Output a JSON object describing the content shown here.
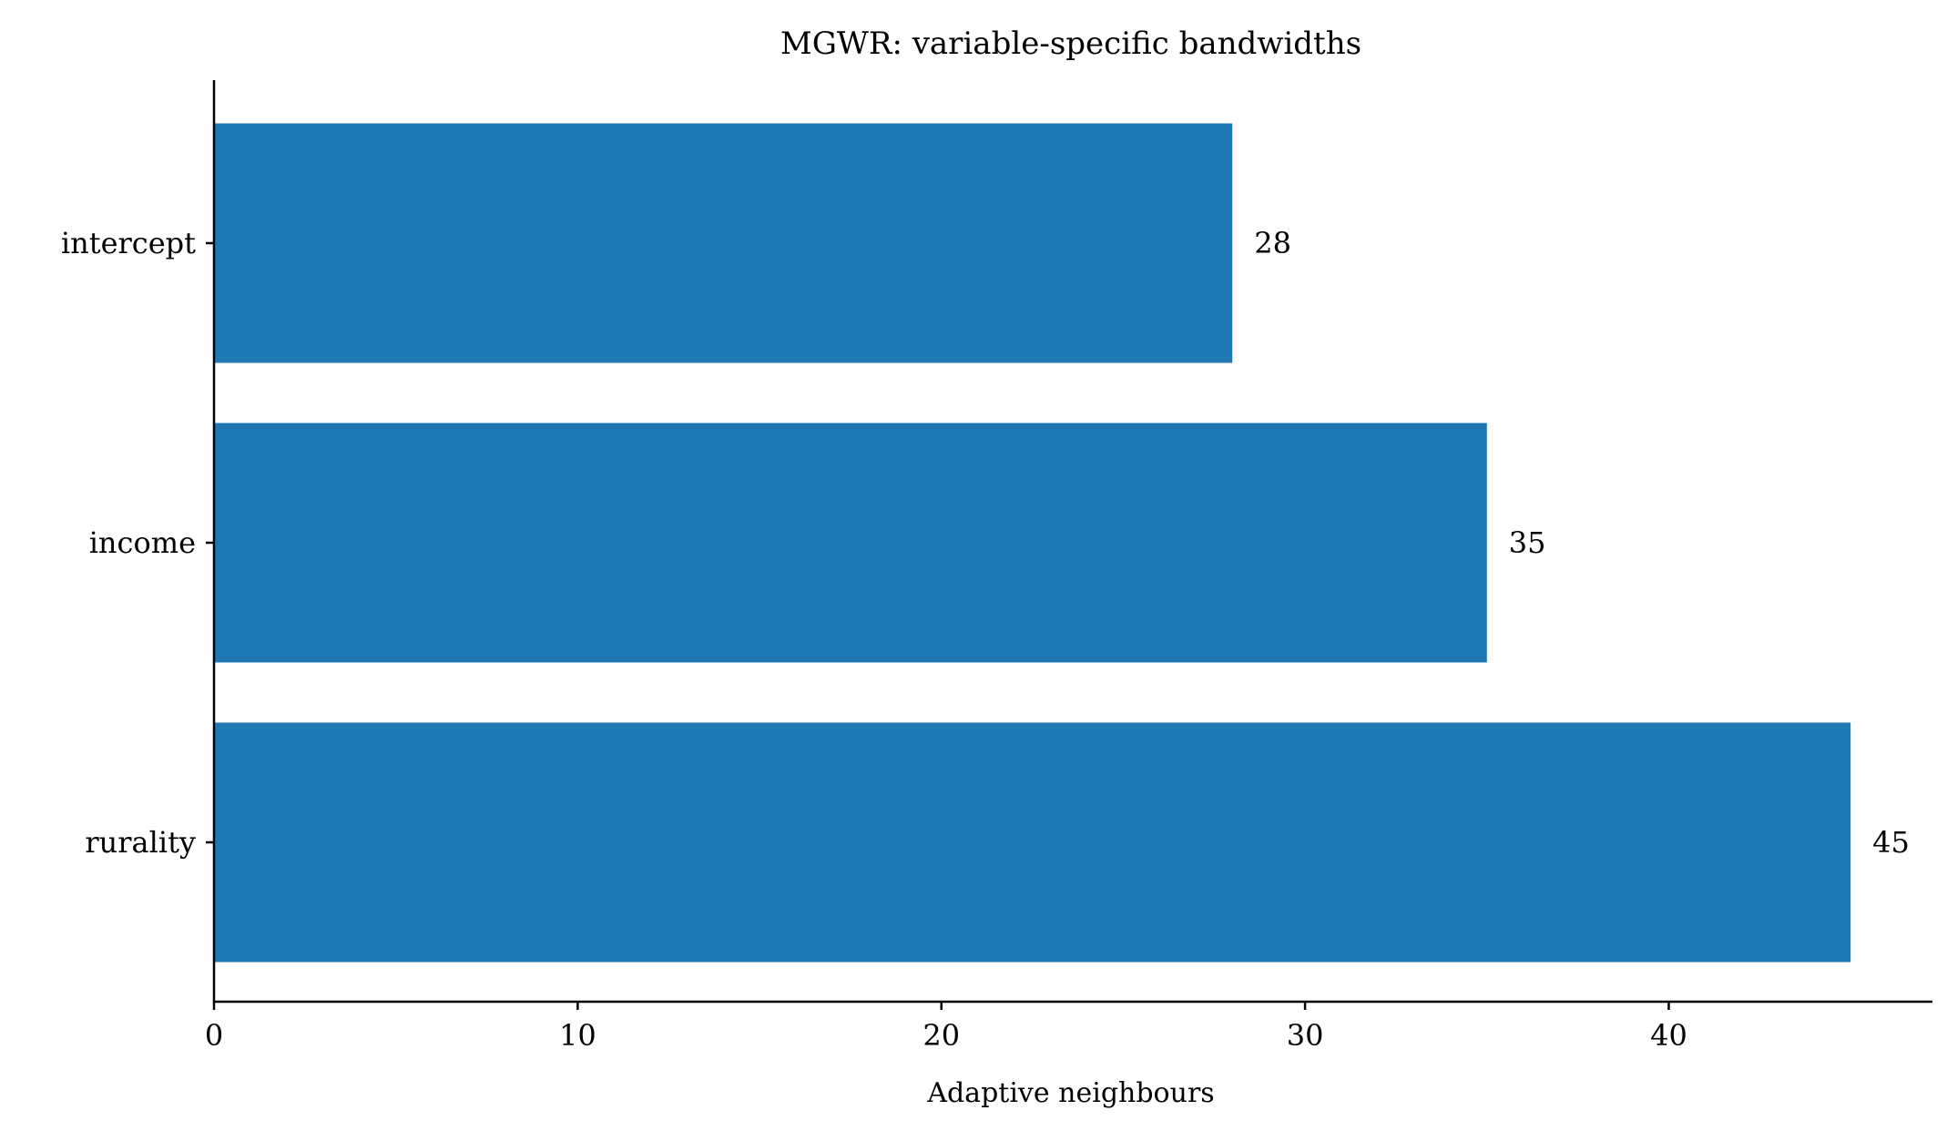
{
  "chart_data": {
    "type": "bar",
    "orientation": "horizontal",
    "title": "MGWR: variable-specific bandwidths",
    "xlabel": "Adaptive neighbours",
    "ylabel": "",
    "categories": [
      "intercept",
      "income",
      "rurality"
    ],
    "values": [
      28,
      35,
      45
    ],
    "value_labels": [
      "28",
      "35",
      "45"
    ],
    "xlim": [
      0,
      47.25
    ],
    "xticks": [
      0,
      10,
      20,
      30,
      40
    ],
    "xtick_labels": [
      "0",
      "10",
      "20",
      "30",
      "40"
    ],
    "grid": false,
    "legend": "none",
    "bar_color": "#1f77b4"
  }
}
